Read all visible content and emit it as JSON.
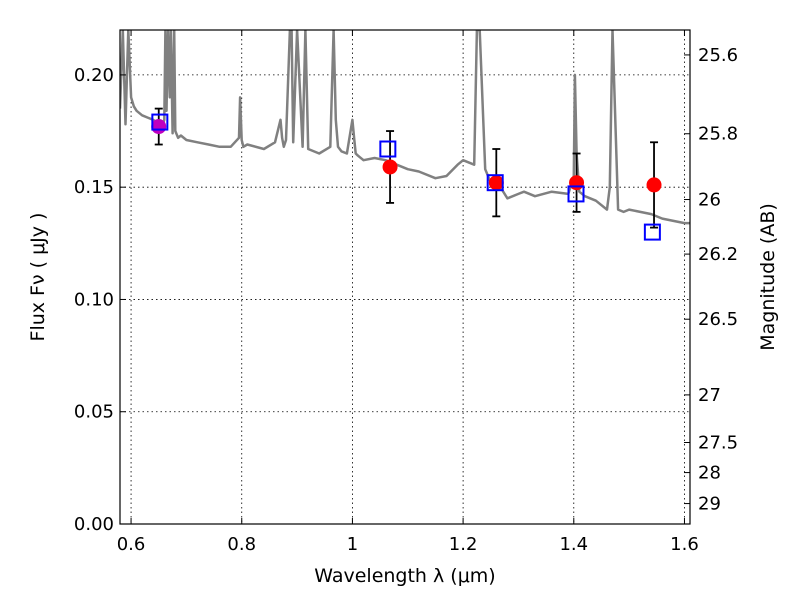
{
  "chart_data": {
    "type": "scatter",
    "title": "",
    "xlabel": "Wavelength  λ (μm)",
    "ylabel": "Flux  Fν  ( μJy )",
    "y2label": "Magnitude (AB)",
    "xlim": [
      0.58,
      1.61
    ],
    "ylim": [
      0.0,
      0.22
    ],
    "grid": true,
    "x_ticks": [
      "0.6",
      "0.8",
      "1",
      "1.2",
      "1.4",
      "1.6"
    ],
    "x_tick_values": [
      0.6,
      0.8,
      1.0,
      1.2,
      1.4,
      1.6
    ],
    "y_ticks": [
      "0.00",
      "0.05",
      "0.10",
      "0.15",
      "0.20"
    ],
    "y_tick_values": [
      0.0,
      0.05,
      0.1,
      0.15,
      0.2
    ],
    "y2_ticks": [
      {
        "label": "25.6",
        "flux": 0.2089
      },
      {
        "label": "25.8",
        "flux": 0.1738
      },
      {
        "label": "26",
        "flux": 0.1445
      },
      {
        "label": "26.2",
        "flux": 0.1202
      },
      {
        "label": "26.5",
        "flux": 0.0912
      },
      {
        "label": "27",
        "flux": 0.0575
      },
      {
        "label": "27.5",
        "flux": 0.0363
      },
      {
        "label": "28",
        "flux": 0.0229
      },
      {
        "label": "29",
        "flux": 0.0091
      }
    ],
    "colors": {
      "observed": "#ff0000",
      "model": "#0000ff",
      "spectrum": "#808080",
      "grid": "#000000",
      "highlight": "#bf00bf"
    },
    "series": [
      {
        "name": "",
        "kind": "observed_points",
        "x": [
          0.65,
          1.068,
          1.26,
          1.405,
          1.545
        ],
        "y": [
          0.177,
          0.159,
          0.152,
          0.152,
          0.151
        ],
        "yerr": [
          0.008,
          0.016,
          0.015,
          0.013,
          0.019
        ]
      },
      {
        "name": "",
        "kind": "model_squares",
        "x": [
          0.652,
          1.064,
          1.258,
          1.404,
          1.542
        ],
        "y": [
          0.179,
          0.167,
          0.152,
          0.147,
          0.13
        ]
      },
      {
        "name": "",
        "kind": "spectrum_line",
        "x": [
          0.58,
          0.585,
          0.59,
          0.595,
          0.6,
          0.605,
          0.61,
          0.62,
          0.63,
          0.64,
          0.645,
          0.65,
          0.655,
          0.66,
          0.662,
          0.664,
          0.667,
          0.67,
          0.672,
          0.675,
          0.678,
          0.68,
          0.685,
          0.69,
          0.7,
          0.72,
          0.74,
          0.76,
          0.78,
          0.795,
          0.797,
          0.8,
          0.803,
          0.81,
          0.84,
          0.86,
          0.87,
          0.873,
          0.876,
          0.88,
          0.887,
          0.89,
          0.893,
          0.9,
          0.91,
          0.915,
          0.92,
          0.94,
          0.96,
          0.966,
          0.97,
          0.974,
          0.98,
          0.99,
          1.0,
          1.003,
          1.006,
          1.01,
          1.02,
          1.04,
          1.06,
          1.08,
          1.1,
          1.12,
          1.15,
          1.17,
          1.19,
          1.2,
          1.22,
          1.225,
          1.23,
          1.24,
          1.25,
          1.26,
          1.27,
          1.28,
          1.3,
          1.31,
          1.33,
          1.36,
          1.39,
          1.4,
          1.402,
          1.405,
          1.41,
          1.42,
          1.44,
          1.46,
          1.465,
          1.47,
          1.48,
          1.49,
          1.5,
          1.52,
          1.54,
          1.56,
          1.58,
          1.6,
          1.61
        ],
        "y": [
          0.185,
          0.22,
          0.178,
          0.22,
          0.19,
          0.186,
          0.184,
          0.182,
          0.181,
          0.18,
          0.179,
          0.178,
          0.176,
          0.18,
          0.22,
          0.184,
          0.22,
          0.19,
          0.22,
          0.174,
          0.22,
          0.175,
          0.172,
          0.173,
          0.171,
          0.17,
          0.169,
          0.168,
          0.168,
          0.172,
          0.19,
          0.171,
          0.168,
          0.169,
          0.167,
          0.17,
          0.18,
          0.172,
          0.168,
          0.171,
          0.22,
          0.22,
          0.17,
          0.22,
          0.168,
          0.22,
          0.167,
          0.165,
          0.168,
          0.22,
          0.18,
          0.168,
          0.166,
          0.165,
          0.18,
          0.172,
          0.165,
          0.164,
          0.162,
          0.163,
          0.162,
          0.16,
          0.158,
          0.157,
          0.154,
          0.155,
          0.16,
          0.162,
          0.16,
          0.22,
          0.22,
          0.158,
          0.152,
          0.15,
          0.149,
          0.145,
          0.147,
          0.148,
          0.146,
          0.148,
          0.147,
          0.155,
          0.2,
          0.165,
          0.148,
          0.146,
          0.144,
          0.14,
          0.15,
          0.22,
          0.14,
          0.139,
          0.14,
          0.139,
          0.138,
          0.136,
          0.135,
          0.134,
          0.134
        ]
      }
    ]
  }
}
